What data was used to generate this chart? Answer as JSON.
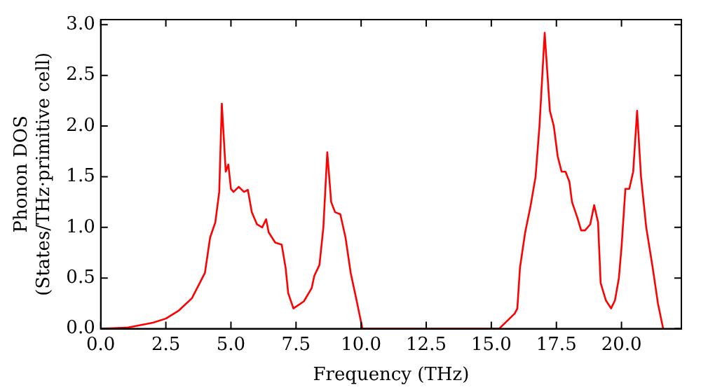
{
  "chart_data": {
    "type": "line",
    "xlabel": "Frequency (THz)",
    "ylabel": "Phonon DOS\n(States/THz·primitive cell)",
    "x": [
      0,
      1,
      2,
      2.5,
      3,
      3.5,
      4,
      4.2,
      4.4,
      4.55,
      4.65,
      4.8,
      4.9,
      5,
      5.1,
      5.3,
      5.5,
      5.65,
      5.8,
      6,
      6.2,
      6.35,
      6.45,
      6.7,
      6.95,
      7.1,
      7.2,
      7.4,
      7.8,
      8.1,
      8.2,
      8.4,
      8.55,
      8.7,
      8.85,
      9,
      9.2,
      9.4,
      9.6,
      9.85,
      10.05,
      15.3,
      15.9,
      16,
      16.1,
      16.3,
      16.5,
      16.7,
      16.85,
      17.05,
      17.25,
      17.4,
      17.55,
      17.7,
      17.85,
      18,
      18.1,
      18.3,
      18.45,
      18.6,
      18.8,
      18.95,
      19.1,
      19.2,
      19.4,
      19.6,
      19.75,
      19.9,
      20,
      20.15,
      20.3,
      20.45,
      20.6,
      20.75,
      20.95,
      21.2,
      21.4,
      21.6
    ],
    "series": [
      {
        "color": "#ff0000",
        "values": [
          0,
          0.01,
          0.06,
          0.1,
          0.18,
          0.3,
          0.55,
          0.9,
          1.05,
          1.35,
          2.22,
          1.55,
          1.62,
          1.38,
          1.35,
          1.4,
          1.35,
          1.37,
          1.15,
          1.03,
          1,
          1.08,
          0.95,
          0.85,
          0.83,
          0.6,
          0.35,
          0.2,
          0.27,
          0.4,
          0.52,
          0.63,
          1,
          1.74,
          1.25,
          1.15,
          1.13,
          0.9,
          0.55,
          0.25,
          0,
          0,
          0.15,
          0.2,
          0.6,
          0.95,
          1.2,
          1.5,
          2,
          2.92,
          2.15,
          2,
          1.7,
          1.55,
          1.55,
          1.45,
          1.25,
          1.1,
          0.97,
          0.97,
          1.03,
          1.22,
          1.05,
          0.45,
          0.28,
          0.2,
          0.28,
          0.5,
          0.8,
          1.38,
          1.38,
          1.55,
          2.15,
          1.5,
          1,
          0.6,
          0.25,
          0
        ]
      }
    ],
    "xlim": [
      0,
      22.3
    ],
    "ylim": [
      0,
      3.05
    ],
    "xticks": [
      {
        "value": 0,
        "label": "0.0"
      },
      {
        "value": 2.5,
        "label": "2.5"
      },
      {
        "value": 5,
        "label": "5.0"
      },
      {
        "value": 7.5,
        "label": "7.5"
      },
      {
        "value": 10,
        "label": "10.0"
      },
      {
        "value": 12.5,
        "label": "12.5"
      },
      {
        "value": 15,
        "label": "15.0"
      },
      {
        "value": 17.5,
        "label": "17.5"
      },
      {
        "value": 20,
        "label": "20.0"
      }
    ],
    "yticks": [
      {
        "value": 0,
        "label": "0.0"
      },
      {
        "value": 0.5,
        "label": "0.5"
      },
      {
        "value": 1,
        "label": "1.0"
      },
      {
        "value": 1.5,
        "label": "1.5"
      },
      {
        "value": 2,
        "label": "2.0"
      },
      {
        "value": 2.5,
        "label": "2.5"
      },
      {
        "value": 3,
        "label": "3.0"
      }
    ],
    "marker": "none",
    "line_style": "solid",
    "legend": false,
    "grid": false
  }
}
